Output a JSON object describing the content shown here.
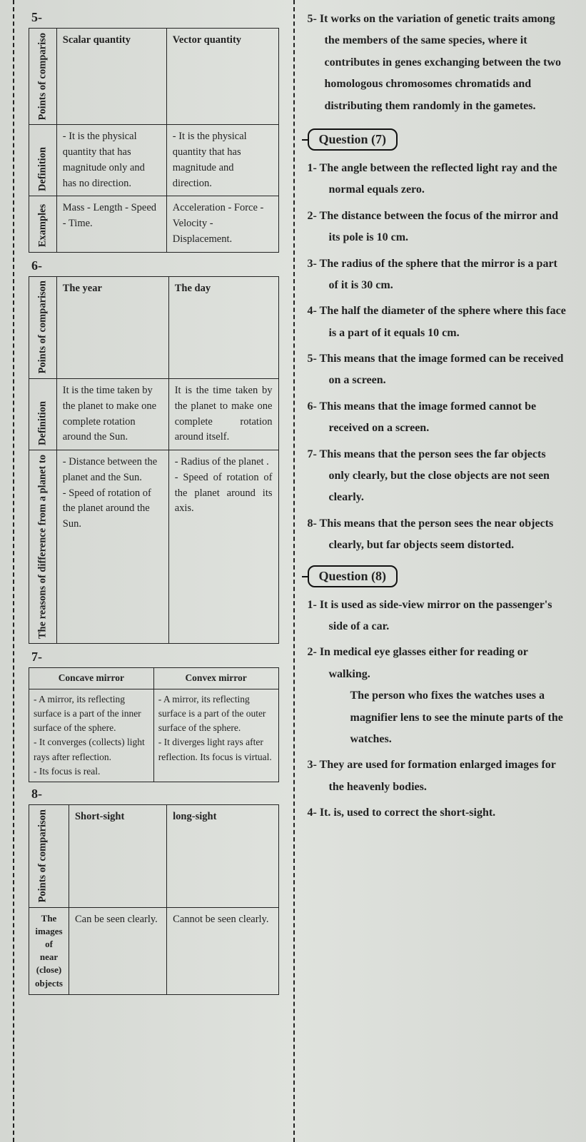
{
  "background_color": "#d8dbd6",
  "text_color": "#222222",
  "font_family": "serif",
  "left": {
    "sections": [
      {
        "num": "5-",
        "table": {
          "type": "comparison",
          "cols": [
            "Points of compariso",
            "Scalar quantity",
            "Vector quantity"
          ],
          "rows": [
            {
              "label": "Definition",
              "a": "- It is the physical quantity that has magnitude only and has no direction.",
              "b": "- It is the physical quantity that has magnitude and direction."
            },
            {
              "label": "Examples",
              "a": "Mass - Length - Speed - Time.",
              "b": "Acceleration - Force - Velocity - Displacement."
            }
          ]
        }
      },
      {
        "num": "6-",
        "table": {
          "type": "comparison",
          "cols": [
            "Points of comparison",
            "The year",
            "The day"
          ],
          "rows": [
            {
              "label": "Definition",
              "a": "It is the time taken by the planet to make one complete rotation around the Sun.",
              "b": "It is the time taken by the planet to make one complete rotation around itself."
            },
            {
              "label": "The reasons of difference from a planet to",
              "a": "- Distance between the planet and the Sun.\n- Speed of rotation of the planet around the Sun.",
              "b": "- Radius of the planet .\n- Speed of rotation of the planet around its axis."
            }
          ]
        }
      },
      {
        "num": "7-",
        "table": {
          "type": "two-col",
          "headers": [
            "Concave mirror",
            "Convex mirror"
          ],
          "a": "- A mirror, its reflecting surface is a part of the inner surface of the sphere.\n- It converges (collects) light rays after reflection.\n- Its focus is real.",
          "b": "- A mirror, its reflecting surface is a part of the outer surface of the sphere.\n- It diverges light rays after reflection. Its focus is virtual."
        }
      },
      {
        "num": "8-",
        "table": {
          "type": "comparison",
          "cols": [
            "Points of comparison",
            "Short-sight",
            "long-sight"
          ],
          "rows": [
            {
              "label": "The images of near (close) objects",
              "a": "Can be seen clearly.",
              "b": "Cannot be seen clearly."
            }
          ]
        }
      }
    ]
  },
  "right": {
    "intro": "5- It works on the variation of genetic traits among the members of the same species, where it contributes in genes exchanging between the two homologous chromosomes chromatids and distributing them randomly in the gametes.",
    "q7": {
      "title": "Question (7)",
      "items": [
        "The angle between the reflected light ray and the normal equals zero.",
        "The distance between the focus of the mirror and its pole is 10 cm.",
        "The radius of the sphere that the mirror is a part of it is 30 cm.",
        "The half the diameter of the sphere where this face is a part of it equals 10 cm.",
        "This means that the image formed can be received on a screen.",
        "This means that the image formed cannot be received on a screen.",
        "This means that the person sees the far objects only clearly, but the close objects are not seen clearly.",
        "This means that the person sees the near objects clearly, but far objects seem distorted."
      ]
    },
    "q8": {
      "title": "Question (8)",
      "items": [
        "It is used as side-view mirror on the passenger's side of a car.",
        "In medical eye glasses either for reading or walking.",
        "They are used for formation enlarged images for the heavenly bodies.",
        "It. is, used to correct the short-sight."
      ],
      "item2_extra": "The person who fixes the watches uses a magnifier lens to see the minute parts of the watches."
    }
  }
}
